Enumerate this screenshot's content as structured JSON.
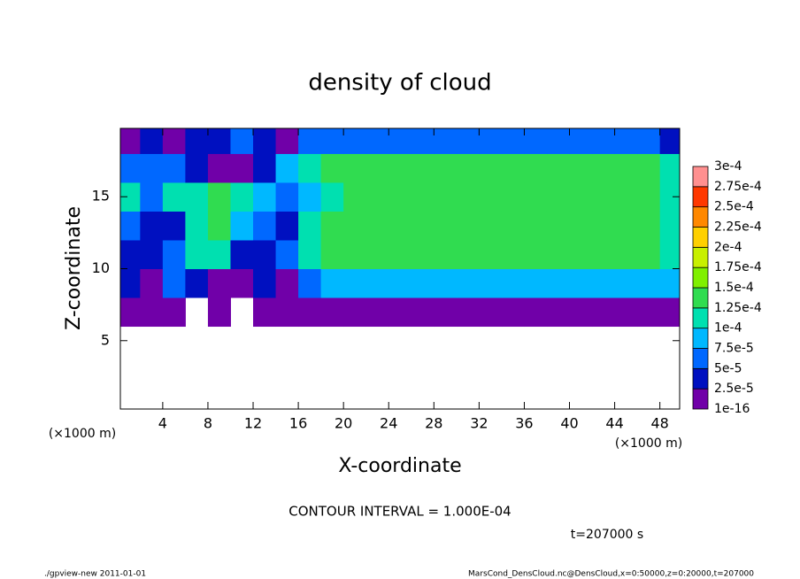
{
  "chart_data": {
    "type": "heatmap",
    "title": "density of cloud",
    "xlabel": "X-coordinate",
    "ylabel": "Z-coordinate",
    "xunit_labels": [
      "(×1000 m)",
      "(×1000 m)"
    ],
    "annotation": "CONTOUR INTERVAL = 1.000E-04",
    "time_label": "t=207000 s",
    "footer_left": "./gpview-new   2011-01-01",
    "footer_right": "MarsCond_DensCloud.nc@DensCloud,x=0:50000,z=0:20000,t=207000",
    "xlim": [
      0.25,
      49.75
    ],
    "ylim": [
      0.25,
      19.75
    ],
    "xticks": [
      4,
      8,
      12,
      16,
      20,
      24,
      28,
      32,
      36,
      40,
      44,
      48
    ],
    "yticks": [
      5,
      10,
      15
    ],
    "x": [
      1,
      3,
      5,
      7,
      9,
      11,
      13,
      15,
      17,
      19,
      21,
      23,
      25,
      27,
      29,
      31,
      33,
      35,
      37,
      39,
      41,
      43,
      45,
      47,
      49
    ],
    "z": [
      1,
      3,
      5,
      7,
      9,
      11,
      13,
      15,
      17,
      19
    ],
    "values": [
      [
        null,
        null,
        null,
        null,
        null,
        null,
        null,
        null,
        null,
        null,
        null,
        null,
        null,
        null,
        null,
        null,
        null,
        null,
        null,
        null,
        null,
        null,
        null,
        null,
        null
      ],
      [
        null,
        null,
        null,
        null,
        null,
        null,
        null,
        null,
        null,
        null,
        null,
        null,
        null,
        null,
        null,
        null,
        null,
        null,
        null,
        null,
        null,
        null,
        null,
        null,
        null
      ],
      [
        null,
        null,
        null,
        null,
        null,
        null,
        null,
        null,
        null,
        null,
        null,
        null,
        null,
        null,
        null,
        null,
        null,
        null,
        null,
        null,
        null,
        null,
        null,
        null,
        null
      ],
      [
        2e-05,
        2e-05,
        2e-05,
        null,
        2e-05,
        null,
        2e-05,
        2e-05,
        2e-05,
        2e-05,
        2e-05,
        2e-05,
        2e-05,
        2e-05,
        2e-05,
        2e-05,
        2e-05,
        2e-05,
        2e-05,
        2e-05,
        2e-05,
        2e-05,
        2e-05,
        2e-05,
        2e-05
      ],
      [
        3e-05,
        2e-05,
        5e-05,
        3e-05,
        2e-05,
        2e-05,
        3e-05,
        2e-05,
        6e-05,
        8e-05,
        8e-05,
        8e-05,
        8e-05,
        8e-05,
        8e-05,
        8e-05,
        8e-05,
        8e-05,
        8e-05,
        8e-05,
        8e-05,
        8e-05,
        8e-05,
        8e-05,
        8e-05
      ],
      [
        4e-05,
        3e-05,
        6e-05,
        0.00012,
        0.00011,
        4e-05,
        3e-05,
        5e-05,
        0.00011,
        0.00013,
        0.00013,
        0.00013,
        0.00013,
        0.00013,
        0.00013,
        0.00013,
        0.00013,
        0.00013,
        0.00013,
        0.00013,
        0.00013,
        0.00013,
        0.00013,
        0.00013,
        0.00012
      ],
      [
        5e-05,
        3e-05,
        4e-05,
        0.00011,
        0.00013,
        8e-05,
        6e-05,
        4e-05,
        0.0001,
        0.000135,
        0.000135,
        0.000135,
        0.000135,
        0.000135,
        0.000135,
        0.000135,
        0.000135,
        0.000135,
        0.000135,
        0.000135,
        0.000135,
        0.000135,
        0.000135,
        0.000135,
        0.00012
      ],
      [
        0.00012,
        6e-05,
        0.00011,
        0.00012,
        0.00013,
        0.00012,
        9e-05,
        6e-05,
        8e-05,
        0.00011,
        0.000135,
        0.000135,
        0.000135,
        0.000135,
        0.000135,
        0.000135,
        0.000135,
        0.000135,
        0.000135,
        0.000135,
        0.000135,
        0.000135,
        0.000135,
        0.000135,
        0.00012
      ],
      [
        7e-05,
        5e-05,
        6e-05,
        3e-05,
        2e-05,
        2e-05,
        3e-05,
        8e-05,
        0.000105,
        0.00013,
        0.00013,
        0.00013,
        0.00013,
        0.00013,
        0.00013,
        0.00013,
        0.00013,
        0.00013,
        0.00013,
        0.00013,
        0.00013,
        0.00013,
        0.00013,
        0.00013,
        0.00011
      ],
      [
        2e-05,
        4e-05,
        2e-05,
        4e-05,
        3e-05,
        5e-05,
        3e-05,
        2e-05,
        6e-05,
        6e-05,
        6e-05,
        6e-05,
        6e-05,
        6e-05,
        6e-05,
        6e-05,
        6e-05,
        6e-05,
        6e-05,
        6e-05,
        6e-05,
        6e-05,
        6e-05,
        6e-05,
        4e-05
      ]
    ],
    "colorbar": {
      "levels": [
        {
          "value": 1e-16,
          "label": "1e-16"
        },
        {
          "value": 2.5e-05,
          "label": "2.5e-5"
        },
        {
          "value": 5e-05,
          "label": "5e-5"
        },
        {
          "value": 7.5e-05,
          "label": "7.5e-5"
        },
        {
          "value": 0.0001,
          "label": "1e-4"
        },
        {
          "value": 0.000125,
          "label": "1.25e-4"
        },
        {
          "value": 0.00015,
          "label": "1.5e-4"
        },
        {
          "value": 0.000175,
          "label": "1.75e-4"
        },
        {
          "value": 0.0002,
          "label": "2e-4"
        },
        {
          "value": 0.000225,
          "label": "2.25e-4"
        },
        {
          "value": 0.00025,
          "label": "2.5e-4"
        },
        {
          "value": 0.000275,
          "label": "2.75e-4"
        },
        {
          "value": 0.0003,
          "label": "3e-4"
        }
      ],
      "colors": [
        "#7000a8",
        "#0010c0",
        "#0068ff",
        "#00b8ff",
        "#00e0b0",
        "#30dc50",
        "#80f000",
        "#c8f000",
        "#ffd000",
        "#ff8800",
        "#ff3800",
        "#ff9090"
      ]
    }
  }
}
